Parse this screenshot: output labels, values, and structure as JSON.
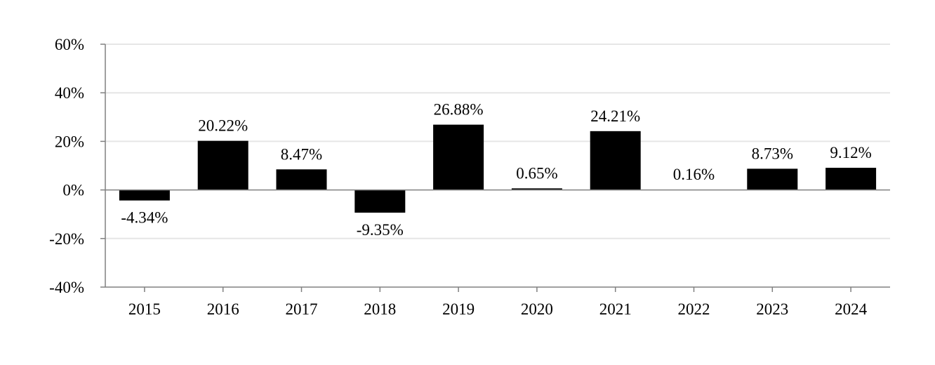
{
  "chart_data": {
    "type": "bar",
    "title": "",
    "xlabel": "",
    "ylabel": "",
    "categories": [
      "2015",
      "2016",
      "2017",
      "2018",
      "2019",
      "2020",
      "2021",
      "2022",
      "2023",
      "2024"
    ],
    "values": [
      -4.34,
      20.22,
      8.47,
      -9.35,
      26.88,
      0.65,
      24.21,
      0.16,
      8.73,
      9.12
    ],
    "value_labels": [
      "-4.34%",
      "20.22%",
      "8.47%",
      "-9.35%",
      "26.88%",
      "0.65%",
      "24.21%",
      "0.16%",
      "8.73%",
      "9.12%"
    ],
    "ylim": [
      -40,
      60
    ],
    "y_ticks": [
      60,
      40,
      20,
      0,
      -20,
      -40
    ],
    "y_tick_labels": [
      "60%",
      "40%",
      "20%",
      "0%",
      "-20%",
      "-40%"
    ],
    "grid": true,
    "legend": "none",
    "colors": {
      "bar": "#000000",
      "grid": "#e6e6e6",
      "axis": "#808080",
      "text": "#000000"
    }
  }
}
